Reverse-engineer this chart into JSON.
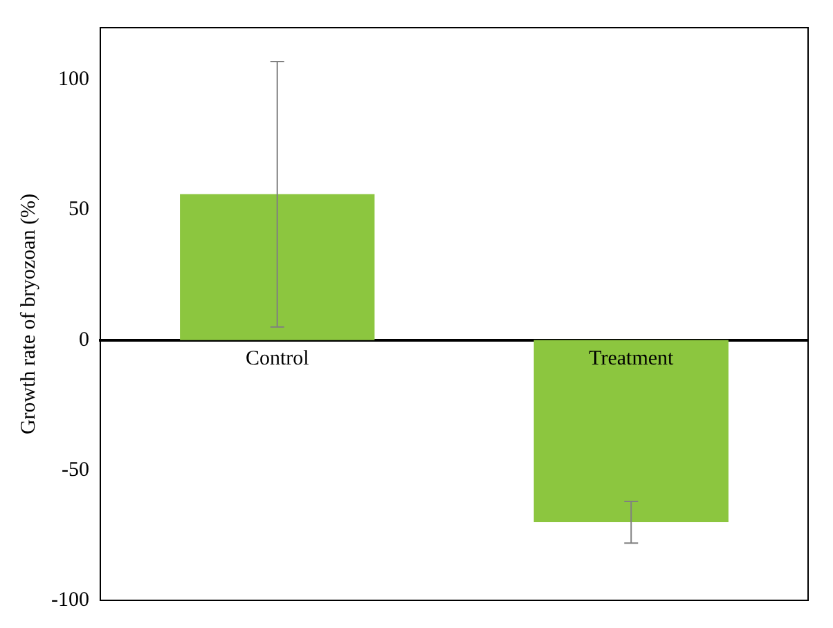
{
  "chart_data": {
    "type": "bar",
    "ylabel": "Growth rate of bryozoan (%)",
    "categories": [
      "Control",
      "Treatment"
    ],
    "values": [
      56,
      -70
    ],
    "color": "#8cc63f",
    "errors": [
      51,
      8
    ],
    "ylim": [
      -100,
      120
    ],
    "yticks": [
      -100,
      -50,
      0,
      50,
      100
    ],
    "grid": false
  }
}
